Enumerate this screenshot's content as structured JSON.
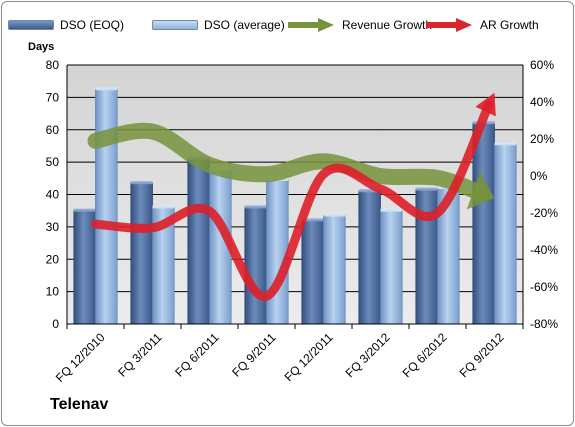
{
  "company_label": "Telenav",
  "chart_data": {
    "type": "bar",
    "y_axis_label": "Days",
    "categories": [
      "FQ 12/2010",
      "FQ 3/2011",
      "FQ 6/2011",
      "FQ 9/2011",
      "FQ 12/2011",
      "FQ 3/2012",
      "FQ 6/2012",
      "FQ 9/2012"
    ],
    "ylim": [
      0,
      80
    ],
    "y_ticks": [
      "0",
      "10",
      "20",
      "30",
      "40",
      "50",
      "60",
      "70",
      "80"
    ],
    "y2lim": [
      -80,
      60
    ],
    "y2_ticks": [
      "-80%",
      "-60%",
      "-40%",
      "-20%",
      "0%",
      "20%",
      "40%",
      "60%"
    ],
    "grid": true,
    "legend_position": "top",
    "series": [
      {
        "name": "DSO (EOQ)",
        "kind": "bar",
        "axis": "left",
        "color": "#4f6f9f",
        "values": [
          35,
          43.5,
          51,
          36,
          32,
          41,
          41.5,
          62
        ]
      },
      {
        "name": "DSO (average)",
        "kind": "bar",
        "axis": "left",
        "color": "#9dbde3",
        "values": [
          72.5,
          36,
          47.5,
          44.5,
          33.5,
          35,
          42,
          55.5
        ]
      },
      {
        "name": "Revenue Growth",
        "kind": "line",
        "axis": "right",
        "color": "#77933c",
        "values": [
          19,
          24,
          6,
          1,
          8,
          0,
          -1,
          -12
        ]
      },
      {
        "name": "AR Growth",
        "kind": "line",
        "axis": "right",
        "color": "#e0262d",
        "values": [
          -26,
          -28,
          -19,
          -65,
          1,
          -7,
          -20,
          45
        ]
      }
    ]
  }
}
